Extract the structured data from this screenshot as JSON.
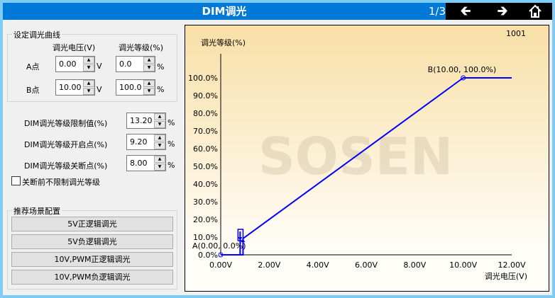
{
  "header": {
    "title": "DIM调光",
    "page": "1/3",
    "nav": {
      "back_icon": "arrow-left-icon",
      "forward_icon": "arrow-right-icon",
      "home_icon": "home-icon"
    }
  },
  "curve_group": {
    "title": "设定调光曲线",
    "col_voltage": "调光电压(V)",
    "col_level": "调光等级(%)",
    "point_a": {
      "label": "A点",
      "voltage": "0.00",
      "level": "0.0"
    },
    "point_b": {
      "label": "B点",
      "voltage": "10.00",
      "level": "100.0"
    },
    "unit_v": "V",
    "unit_pct": "%"
  },
  "limits": [
    {
      "label": "DIM调光等级限制值(%)",
      "value": "13.20",
      "unit": "%"
    },
    {
      "label": "DIM调光等级开启点(%)",
      "value": "9.20",
      "unit": "%"
    },
    {
      "label": "DIM调光等级关断点(%)",
      "value": "8.00",
      "unit": "%"
    }
  ],
  "no_limit_checkbox": {
    "label": "关断前不限制调光等级",
    "checked": false
  },
  "scenes": {
    "title": "推荐场景配置",
    "buttons": [
      "5V正逻辑调光",
      "5V负逻辑调光",
      "10V,PWM正逻辑调光",
      "10V,PWM负逻辑调光"
    ]
  },
  "chart_data": {
    "type": "line",
    "id_label": "1001",
    "watermark": "SOSEN",
    "xlabel": "调光电压(V)",
    "ylabel": "调光等级(%)",
    "xlim": [
      0,
      12
    ],
    "ylim": [
      0,
      100
    ],
    "xticks": [
      "0.00V",
      "2.00V",
      "4.00V",
      "6.00V",
      "8.00V",
      "10.00V",
      "12.00V"
    ],
    "yticks": [
      "0.0%",
      "10.0%",
      "20.0%",
      "30.0%",
      "40.0%",
      "50.0%",
      "60.0%",
      "70.0%",
      "80.0%",
      "90.0%",
      "100.0%"
    ],
    "series": [
      {
        "color": "#0000ff",
        "x": [
          0,
          0.92,
          0.92,
          10,
          12
        ],
        "y": [
          0,
          0,
          9.2,
          100,
          100
        ]
      }
    ],
    "annotations": [
      {
        "text": "A(0.00, 0.0%)",
        "x": 0,
        "y": 0
      },
      {
        "text": "B(10.00, 100.0%)",
        "x": 10,
        "y": 100
      }
    ],
    "limit_markers": {
      "off": 8.0,
      "on": 9.2,
      "limit": 13.2
    }
  }
}
